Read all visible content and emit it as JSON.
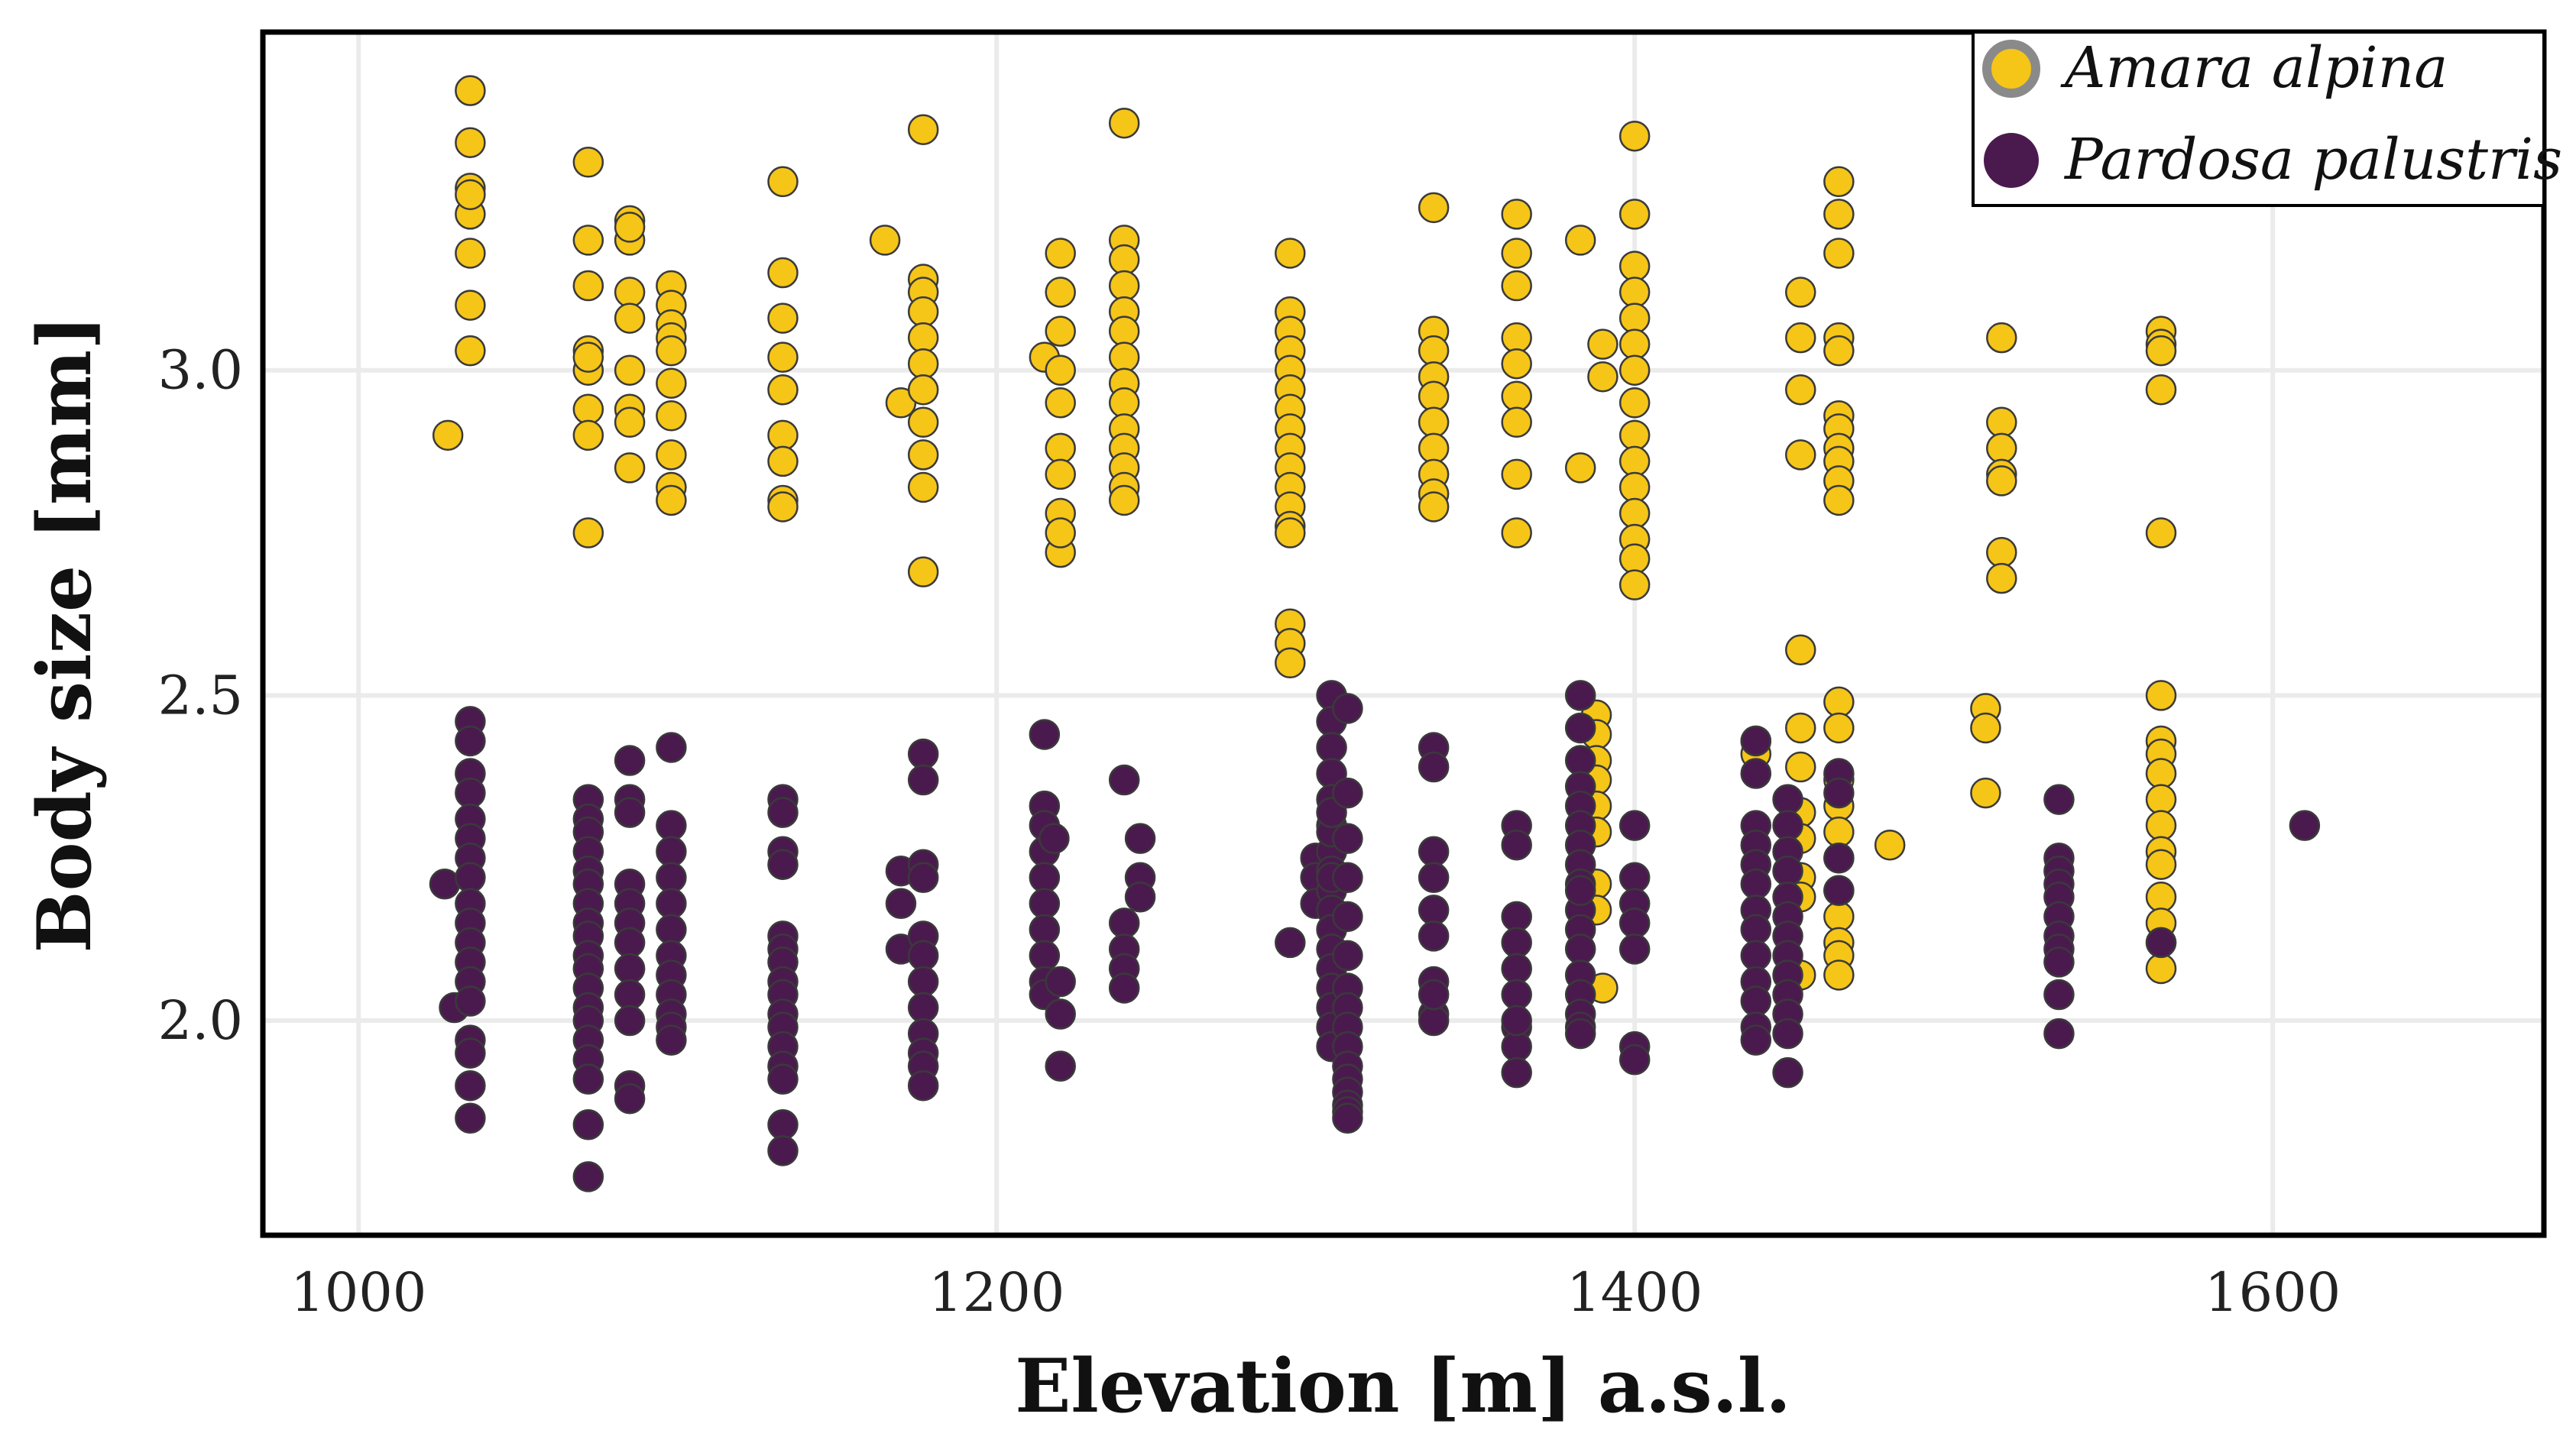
{
  "chart_data": {
    "type": "scatter",
    "xlabel": "Elevation [m] a.s.l.",
    "ylabel": "Body size [mm]",
    "xlim": [
      970,
      1685
    ],
    "ylim": [
      1.67,
      3.52
    ],
    "xticks": [
      1000,
      1200,
      1400,
      1600
    ],
    "yticks": [
      2.0,
      2.5,
      3.0
    ],
    "xtick_labels": [
      "1000",
      "1200",
      "1400",
      "1600"
    ],
    "ytick_labels": [
      "2.0",
      "2.5",
      "3.0"
    ],
    "grid": true,
    "legend_position": "top-right",
    "series": [
      {
        "name": "Amara alpina",
        "color": "#f5c518",
        "x": [
          1028,
          1035,
          1035,
          1035,
          1035,
          1035,
          1035,
          1035,
          1035,
          1072,
          1072,
          1072,
          1072,
          1072,
          1072,
          1072,
          1072,
          1072,
          1085,
          1085,
          1085,
          1085,
          1085,
          1085,
          1085,
          1085,
          1085,
          1098,
          1098,
          1098,
          1098,
          1098,
          1098,
          1098,
          1098,
          1098,
          1098,
          1133,
          1133,
          1133,
          1133,
          1133,
          1133,
          1133,
          1133,
          1133,
          1165,
          1170,
          1177,
          1177,
          1177,
          1177,
          1177,
          1177,
          1177,
          1177,
          1177,
          1177,
          1177,
          1215,
          1220,
          1220,
          1220,
          1220,
          1220,
          1220,
          1220,
          1220,
          1220,
          1220,
          1240,
          1240,
          1240,
          1240,
          1240,
          1240,
          1240,
          1240,
          1240,
          1240,
          1240,
          1240,
          1240,
          1240,
          1292,
          1292,
          1292,
          1292,
          1292,
          1292,
          1292,
          1292,
          1292,
          1292,
          1292,
          1292,
          1292,
          1292,
          1292,
          1292,
          1292,
          1337,
          1337,
          1337,
          1337,
          1337,
          1337,
          1337,
          1337,
          1337,
          1337,
          1363,
          1363,
          1363,
          1363,
          1363,
          1363,
          1363,
          1363,
          1363,
          1383,
          1383,
          1390,
          1390,
          1400,
          1400,
          1400,
          1400,
          1400,
          1400,
          1400,
          1400,
          1400,
          1400,
          1400,
          1400,
          1400,
          1400,
          1400,
          1388,
          1388,
          1388,
          1388,
          1388,
          1388,
          1388,
          1388,
          1390,
          1438,
          1438,
          1452,
          1452,
          1452,
          1452,
          1452,
          1452,
          1452,
          1452,
          1452,
          1452,
          1452,
          1452,
          1464,
          1464,
          1464,
          1464,
          1464,
          1464,
          1464,
          1464,
          1464,
          1464,
          1464,
          1464,
          1464,
          1464,
          1464,
          1464,
          1464,
          1464,
          1464,
          1464,
          1464,
          1464,
          1480,
          1510,
          1510,
          1510,
          1515,
          1515,
          1515,
          1515,
          1515,
          1515,
          1515,
          1565,
          1565,
          1565,
          1565,
          1565,
          1565,
          1565,
          1565,
          1565,
          1565,
          1565,
          1565,
          1565,
          1565,
          1565,
          1565,
          1565
        ],
        "y": [
          2.9,
          3.43,
          3.35,
          3.28,
          3.24,
          3.18,
          3.1,
          3.03,
          3.27,
          3.32,
          3.2,
          3.13,
          3.03,
          3.0,
          2.94,
          2.9,
          2.75,
          3.02,
          3.23,
          3.2,
          3.12,
          3.08,
          3.0,
          2.94,
          2.92,
          2.85,
          3.22,
          3.13,
          3.1,
          3.07,
          3.05,
          3.03,
          2.98,
          2.93,
          2.87,
          2.82,
          2.8,
          3.29,
          3.15,
          3.08,
          3.02,
          2.97,
          2.9,
          2.86,
          2.8,
          2.79,
          3.2,
          2.95,
          3.37,
          3.14,
          3.12,
          3.09,
          3.05,
          3.01,
          2.97,
          2.92,
          2.87,
          2.82,
          2.69,
          3.02,
          3.18,
          3.12,
          3.06,
          3.0,
          2.95,
          2.88,
          2.84,
          2.78,
          2.72,
          2.75,
          3.38,
          3.2,
          3.17,
          3.13,
          3.09,
          3.06,
          3.02,
          2.98,
          2.95,
          2.91,
          2.88,
          2.85,
          2.82,
          2.8,
          3.18,
          3.09,
          3.06,
          3.03,
          3.0,
          2.97,
          2.94,
          2.91,
          2.88,
          2.85,
          2.82,
          2.79,
          2.76,
          2.61,
          2.58,
          2.55,
          2.75,
          3.25,
          3.06,
          3.03,
          2.99,
          2.96,
          2.92,
          2.88,
          2.84,
          2.81,
          2.79,
          3.24,
          3.18,
          3.13,
          3.05,
          3.01,
          2.96,
          2.92,
          2.84,
          2.75,
          3.2,
          2.85,
          3.04,
          2.99,
          3.36,
          3.24,
          3.16,
          3.12,
          3.08,
          3.04,
          3.0,
          2.95,
          2.9,
          2.86,
          2.82,
          2.78,
          2.74,
          2.71,
          2.67,
          2.47,
          2.44,
          2.4,
          2.37,
          2.33,
          2.29,
          2.21,
          2.17,
          2.05,
          2.43,
          2.41,
          2.57,
          2.45,
          2.39,
          2.32,
          2.28,
          2.22,
          2.19,
          2.07,
          3.12,
          3.05,
          2.97,
          2.87,
          3.29,
          3.24,
          3.18,
          3.05,
          3.03,
          2.93,
          2.91,
          2.88,
          2.86,
          2.83,
          2.8,
          2.49,
          2.45,
          2.37,
          2.33,
          2.29,
          2.25,
          2.2,
          2.16,
          2.12,
          2.1,
          2.07,
          2.27,
          2.48,
          2.45,
          2.35,
          3.05,
          2.92,
          2.88,
          2.84,
          2.72,
          2.68,
          2.83,
          3.06,
          3.04,
          3.03,
          2.97,
          2.75,
          2.5,
          2.43,
          2.41,
          2.38,
          2.34,
          2.3,
          2.26,
          2.24,
          2.19,
          2.15,
          2.12,
          2.08
        ]
      },
      {
        "name": "Pardosa palustris",
        "color": "#4a1a4e",
        "x": [
          1027,
          1030,
          1035,
          1035,
          1035,
          1035,
          1035,
          1035,
          1035,
          1035,
          1035,
          1035,
          1035,
          1035,
          1035,
          1035,
          1035,
          1035,
          1035,
          1035,
          1072,
          1072,
          1072,
          1072,
          1072,
          1072,
          1072,
          1072,
          1072,
          1072,
          1072,
          1072,
          1072,
          1072,
          1072,
          1072,
          1072,
          1072,
          1072,
          1085,
          1085,
          1085,
          1085,
          1085,
          1085,
          1085,
          1085,
          1085,
          1085,
          1085,
          1085,
          1098,
          1098,
          1098,
          1098,
          1098,
          1098,
          1098,
          1098,
          1098,
          1098,
          1098,
          1098,
          1133,
          1133,
          1133,
          1133,
          1133,
          1133,
          1133,
          1133,
          1133,
          1133,
          1133,
          1133,
          1133,
          1133,
          1133,
          1133,
          1170,
          1170,
          1170,
          1177,
          1177,
          1177,
          1177,
          1177,
          1177,
          1177,
          1177,
          1177,
          1177,
          1177,
          1177,
          1215,
          1215,
          1215,
          1215,
          1215,
          1215,
          1215,
          1215,
          1215,
          1215,
          1218,
          1220,
          1220,
          1220,
          1240,
          1240,
          1240,
          1240,
          1240,
          1245,
          1245,
          1245,
          1292,
          1300,
          1300,
          1300,
          1305,
          1305,
          1305,
          1305,
          1305,
          1305,
          1305,
          1305,
          1305,
          1305,
          1305,
          1305,
          1305,
          1305,
          1305,
          1305,
          1305,
          1305,
          1305,
          1305,
          1310,
          1310,
          1310,
          1310,
          1310,
          1310,
          1310,
          1310,
          1310,
          1310,
          1310,
          1310,
          1310,
          1310,
          1310,
          1310,
          1337,
          1337,
          1337,
          1337,
          1337,
          1337,
          1337,
          1337,
          1337,
          1337,
          1363,
          1363,
          1363,
          1363,
          1363,
          1363,
          1363,
          1363,
          1363,
          1363,
          1383,
          1383,
          1383,
          1383,
          1383,
          1383,
          1383,
          1383,
          1383,
          1383,
          1383,
          1383,
          1383,
          1383,
          1383,
          1383,
          1383,
          1383,
          1400,
          1400,
          1400,
          1400,
          1400,
          1400,
          1400,
          1438,
          1438,
          1438,
          1438,
          1438,
          1438,
          1438,
          1438,
          1438,
          1438,
          1438,
          1438,
          1438,
          1448,
          1448,
          1448,
          1448,
          1448,
          1448,
          1448,
          1448,
          1448,
          1448,
          1448,
          1448,
          1448,
          1464,
          1464,
          1464,
          1464,
          1533,
          1533,
          1533,
          1533,
          1533,
          1533,
          1533,
          1533,
          1533,
          1533,
          1533,
          1565,
          1610
        ],
        "y": [
          2.21,
          2.02,
          2.46,
          2.43,
          2.38,
          2.35,
          2.31,
          2.28,
          2.25,
          2.22,
          2.18,
          2.15,
          2.12,
          2.09,
          2.06,
          2.03,
          1.97,
          1.95,
          1.9,
          1.85,
          2.34,
          2.31,
          2.29,
          2.26,
          2.23,
          2.21,
          2.18,
          2.15,
          2.13,
          2.1,
          2.08,
          2.05,
          2.02,
          2.0,
          1.97,
          1.94,
          1.91,
          1.84,
          1.76,
          2.4,
          2.34,
          2.32,
          2.21,
          2.18,
          2.15,
          2.12,
          2.08,
          2.04,
          2.0,
          1.9,
          1.88,
          2.42,
          2.3,
          2.26,
          2.22,
          2.18,
          2.14,
          2.1,
          2.07,
          2.04,
          2.01,
          1.99,
          1.97,
          2.34,
          2.32,
          2.26,
          2.24,
          2.13,
          2.11,
          2.09,
          2.06,
          2.04,
          2.01,
          1.99,
          1.96,
          1.93,
          1.91,
          1.84,
          1.8,
          2.23,
          2.18,
          2.11,
          2.41,
          2.37,
          2.24,
          2.22,
          2.13,
          2.1,
          2.06,
          2.02,
          1.98,
          1.95,
          1.93,
          1.9,
          2.44,
          2.33,
          2.3,
          2.26,
          2.22,
          2.18,
          2.14,
          2.1,
          2.06,
          2.04,
          2.28,
          2.06,
          2.01,
          1.93,
          2.37,
          2.15,
          2.11,
          2.08,
          2.05,
          2.28,
          2.22,
          2.19,
          2.12,
          2.25,
          2.22,
          2.18,
          2.5,
          2.46,
          2.42,
          2.38,
          2.34,
          2.3,
          2.26,
          2.23,
          2.2,
          2.17,
          2.14,
          2.11,
          2.08,
          2.05,
          2.02,
          1.99,
          1.96,
          2.29,
          2.32,
          2.22,
          2.48,
          2.35,
          2.28,
          2.22,
          2.16,
          2.1,
          2.05,
          2.02,
          1.99,
          1.96,
          1.93,
          1.91,
          1.89,
          1.87,
          1.86,
          1.85,
          2.42,
          2.39,
          2.26,
          2.22,
          2.17,
          2.13,
          2.06,
          2.01,
          2.0,
          2.04,
          2.3,
          2.27,
          2.16,
          2.12,
          2.08,
          2.04,
          1.99,
          1.96,
          1.92,
          2.0,
          2.5,
          2.45,
          2.4,
          2.36,
          2.33,
          2.3,
          2.27,
          2.24,
          2.21,
          2.17,
          2.14,
          2.11,
          2.07,
          2.04,
          2.01,
          1.99,
          1.98,
          2.2,
          2.3,
          2.22,
          2.18,
          2.15,
          2.11,
          1.96,
          1.94,
          2.43,
          2.38,
          2.3,
          2.27,
          2.24,
          2.21,
          2.17,
          2.14,
          2.1,
          2.06,
          2.03,
          1.99,
          1.97,
          2.34,
          2.3,
          2.26,
          2.23,
          2.19,
          2.16,
          2.13,
          2.1,
          2.07,
          2.04,
          2.01,
          1.98,
          1.92,
          2.38,
          2.35,
          2.25,
          2.2,
          2.34,
          2.25,
          2.23,
          2.21,
          2.19,
          2.16,
          2.13,
          2.11,
          2.09,
          2.04,
          1.98,
          2.12,
          2.3
        ]
      }
    ]
  }
}
